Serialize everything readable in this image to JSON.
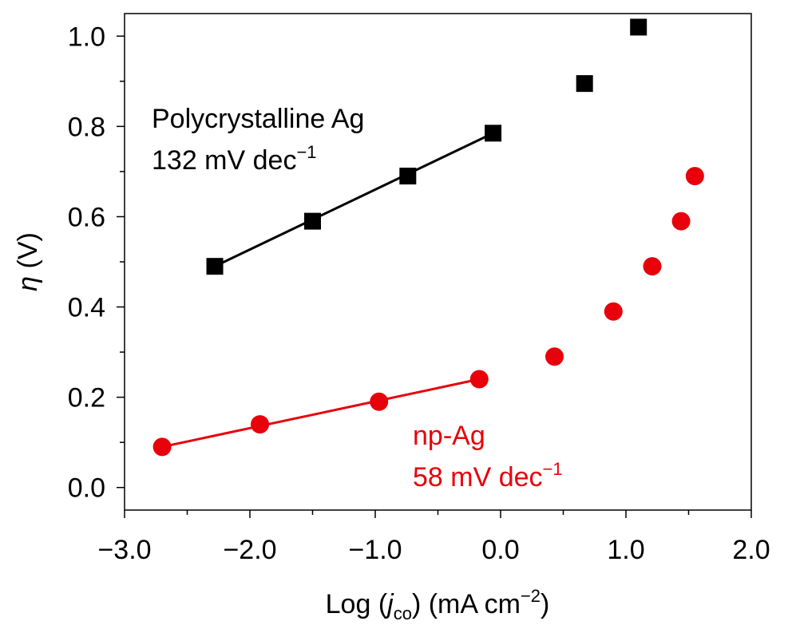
{
  "chart_data": {
    "type": "scatter",
    "xlabel": {
      "prefix": "Log (",
      "var": "j",
      "sub": "co",
      "suffix": ") (mA cm",
      "sup": "−2",
      "close": ")"
    },
    "ylabel": {
      "var": "η",
      "unit": " (V)"
    },
    "xlim": [
      -3.0,
      2.0
    ],
    "ylim": [
      -0.05,
      1.05
    ],
    "x_ticks": [
      -3.0,
      -2.0,
      -1.0,
      0.0,
      1.0,
      2.0
    ],
    "x_tick_labels": [
      "−3.0",
      "−2.0",
      "−1.0",
      "0.0",
      "1.0",
      "2.0"
    ],
    "y_ticks": [
      0.0,
      0.2,
      0.4,
      0.6,
      0.8,
      1.0
    ],
    "y_tick_labels": [
      "0.0",
      "0.2",
      "0.4",
      "0.6",
      "0.8",
      "1.0"
    ],
    "grid": false,
    "series": [
      {
        "name": "Polycrystalline Ag",
        "color": "#000000",
        "marker": "square",
        "x": [
          -2.28,
          -1.5,
          -0.74,
          -0.06,
          0.67,
          1.1
        ],
        "y": [
          0.49,
          0.59,
          0.69,
          0.785,
          0.895,
          1.02
        ],
        "fit": {
          "x": [
            -2.28,
            -0.06
          ],
          "y": [
            0.49,
            0.785
          ]
        }
      },
      {
        "name": "np-Ag",
        "color": "#e8000b",
        "marker": "circle",
        "x": [
          -2.7,
          -1.92,
          -0.97,
          -0.17,
          0.43,
          0.9,
          1.21,
          1.44,
          1.55
        ],
        "y": [
          0.09,
          0.14,
          0.19,
          0.24,
          0.29,
          0.39,
          0.49,
          0.59,
          0.69
        ],
        "fit": {
          "x": [
            -2.7,
            -0.17
          ],
          "y": [
            0.09,
            0.24
          ]
        }
      }
    ],
    "annotations": [
      {
        "line1": "Polycrystalline Ag",
        "line2": "132 mV dec",
        "sup": "−1",
        "color": "#000000"
      },
      {
        "line1": "np-Ag",
        "line2": "58 mV dec",
        "sup": "−1",
        "color": "#e8000b"
      }
    ]
  }
}
